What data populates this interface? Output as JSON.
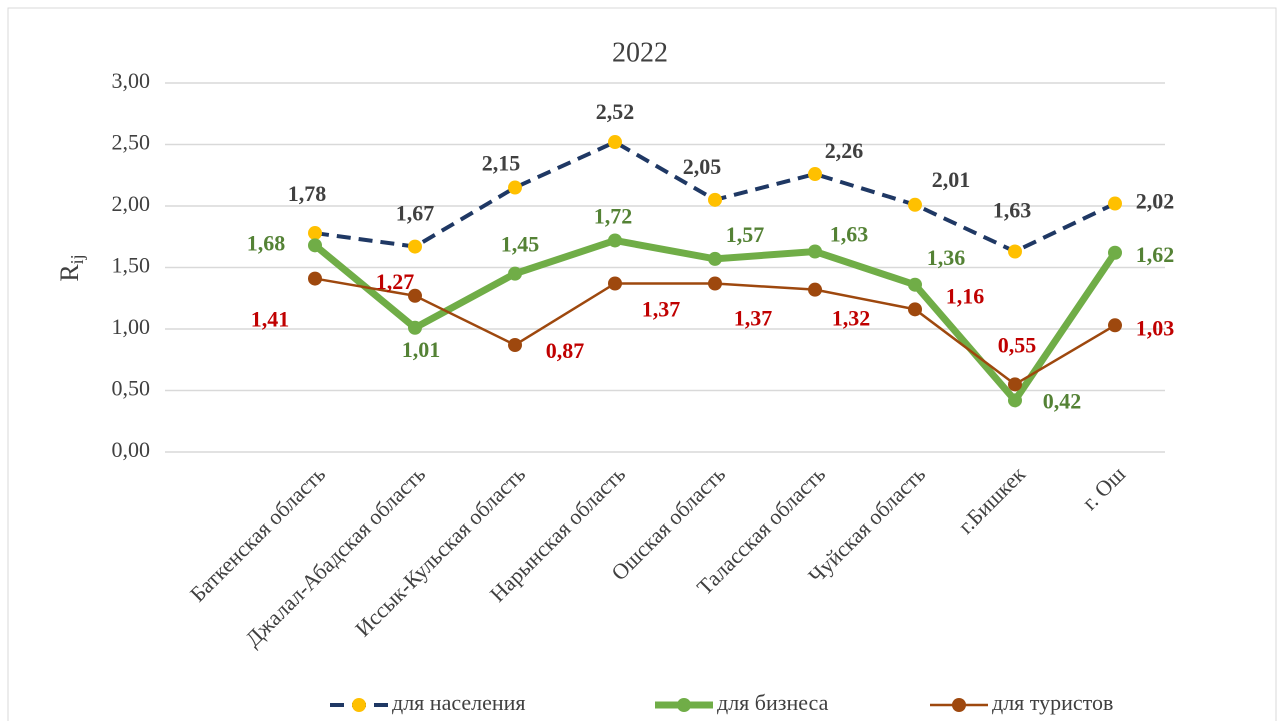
{
  "chart_data": {
    "type": "line",
    "title": "2022",
    "ylabel": {
      "text": "R",
      "subscript": "ij"
    },
    "categories": [
      "Баткенская область",
      "Джалал-Абадская область",
      "Иссык-Кульская область",
      "Нарынская область",
      "Ошская область",
      "Таласская область",
      "Чуйская область",
      "г.Бишкек",
      "г. Ош"
    ],
    "series": [
      {
        "name": "для населения",
        "color": "#1f3864",
        "marker_color": "#ffc000",
        "label_color": "#404040",
        "dashed": true,
        "values": [
          1.78,
          1.67,
          2.15,
          2.52,
          2.05,
          2.26,
          2.01,
          1.63,
          2.02
        ],
        "value_labels": [
          "1,78",
          "1,67",
          "2,15",
          "2,52",
          "2,05",
          "2,26",
          "2,01",
          "1,63",
          "2,02"
        ]
      },
      {
        "name": "для бизнеса",
        "color": "#70ad47",
        "marker_color": "#70ad47",
        "label_color": "#548235",
        "dashed": false,
        "values": [
          1.68,
          1.01,
          1.45,
          1.72,
          1.57,
          1.63,
          1.36,
          0.42,
          1.62
        ],
        "value_labels": [
          "1,68",
          "1,01",
          "1,45",
          "1,72",
          "1,57",
          "1,63",
          "1,36",
          "0,42",
          "1,62"
        ]
      },
      {
        "name": "для туристов",
        "color": "#9e480e",
        "marker_color": "#9e480e",
        "label_color": "#c00000",
        "dashed": false,
        "values": [
          1.41,
          1.27,
          0.87,
          1.37,
          1.37,
          1.32,
          1.16,
          0.55,
          1.03
        ],
        "value_labels": [
          "1,41",
          "1,27",
          "0,87",
          "1,37",
          "1,37",
          "1,32",
          "1,16",
          "0,55",
          "1,03"
        ]
      }
    ],
    "ylim": [
      0,
      3
    ],
    "yticks": [
      {
        "value": 0,
        "label": "0,00"
      },
      {
        "value": 0.5,
        "label": "0,50"
      },
      {
        "value": 1,
        "label": "1,00"
      },
      {
        "value": 1.5,
        "label": "1,50"
      },
      {
        "value": 2,
        "label": "2,00"
      },
      {
        "value": 2.5,
        "label": "2,50"
      },
      {
        "value": 3,
        "label": "3,00"
      }
    ],
    "grid": true,
    "legend": "bottom"
  }
}
